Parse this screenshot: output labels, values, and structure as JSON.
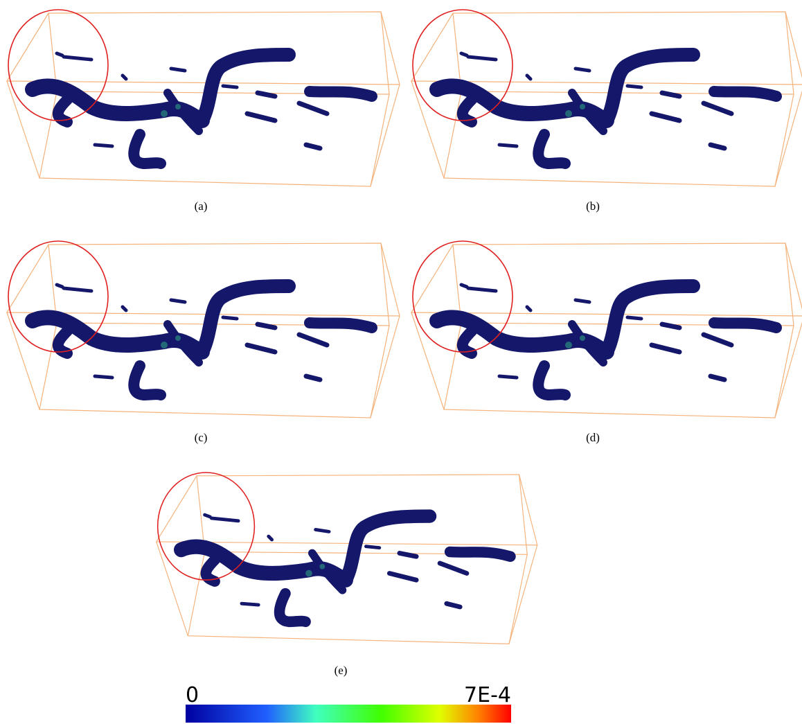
{
  "panels": [
    {
      "caption": "(a)"
    },
    {
      "caption": "(b)"
    },
    {
      "caption": "(c)"
    },
    {
      "caption": "(d)"
    },
    {
      "caption": "(e)"
    }
  ],
  "colorbar": {
    "min_label": "0",
    "max_label": "7E-4"
  }
}
